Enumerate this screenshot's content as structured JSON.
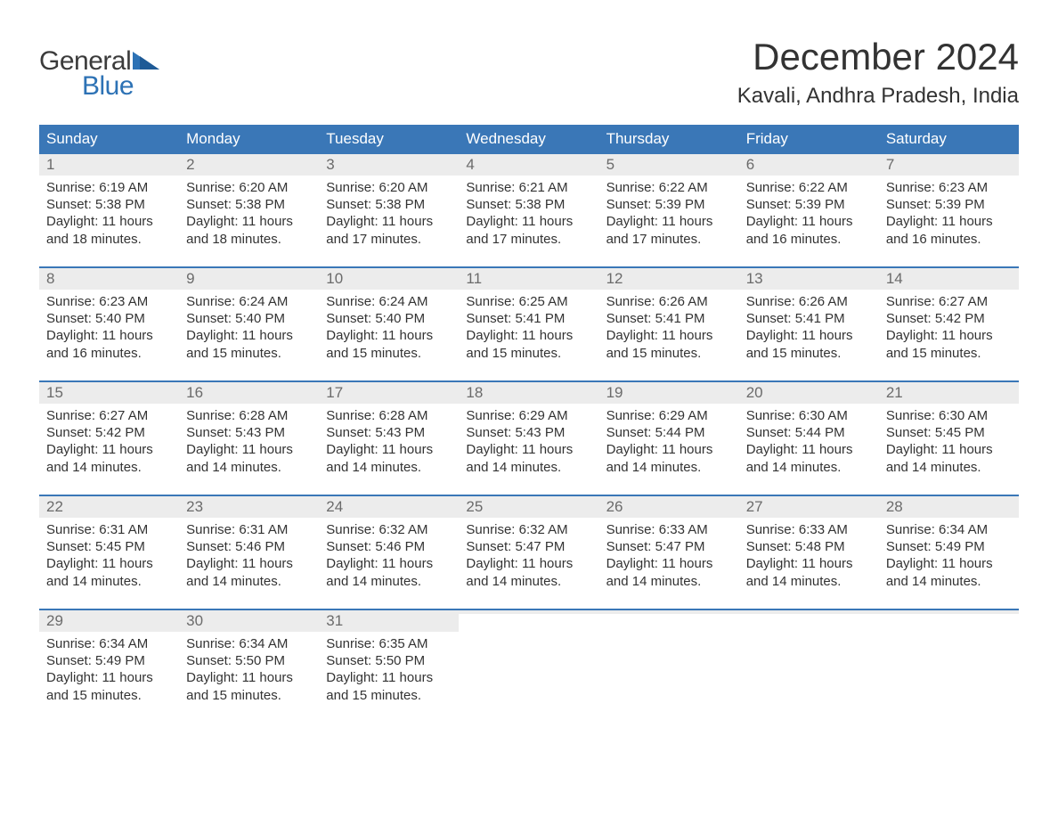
{
  "logo": {
    "word1": "General",
    "word2": "Blue",
    "brand_color": "#2d72b5",
    "text_color": "#3b3b3b"
  },
  "title": "December 2024",
  "subtitle": "Kavali, Andhra Pradesh, India",
  "colors": {
    "header_bg": "#3a77b7",
    "header_text": "#ffffff",
    "daynum_bg": "#ececec",
    "daynum_text": "#6b6b6b",
    "body_text": "#333333",
    "week_divider": "#3a77b7",
    "page_bg": "#ffffff"
  },
  "fontsizes": {
    "title": 42,
    "subtitle": 24,
    "header": 17,
    "daynum": 17,
    "body": 15
  },
  "weekdays": [
    "Sunday",
    "Monday",
    "Tuesday",
    "Wednesday",
    "Thursday",
    "Friday",
    "Saturday"
  ],
  "weeks": [
    [
      {
        "n": "1",
        "sunrise": "Sunrise: 6:19 AM",
        "sunset": "Sunset: 5:38 PM",
        "day1": "Daylight: 11 hours",
        "day2": "and 18 minutes."
      },
      {
        "n": "2",
        "sunrise": "Sunrise: 6:20 AM",
        "sunset": "Sunset: 5:38 PM",
        "day1": "Daylight: 11 hours",
        "day2": "and 18 minutes."
      },
      {
        "n": "3",
        "sunrise": "Sunrise: 6:20 AM",
        "sunset": "Sunset: 5:38 PM",
        "day1": "Daylight: 11 hours",
        "day2": "and 17 minutes."
      },
      {
        "n": "4",
        "sunrise": "Sunrise: 6:21 AM",
        "sunset": "Sunset: 5:38 PM",
        "day1": "Daylight: 11 hours",
        "day2": "and 17 minutes."
      },
      {
        "n": "5",
        "sunrise": "Sunrise: 6:22 AM",
        "sunset": "Sunset: 5:39 PM",
        "day1": "Daylight: 11 hours",
        "day2": "and 17 minutes."
      },
      {
        "n": "6",
        "sunrise": "Sunrise: 6:22 AM",
        "sunset": "Sunset: 5:39 PM",
        "day1": "Daylight: 11 hours",
        "day2": "and 16 minutes."
      },
      {
        "n": "7",
        "sunrise": "Sunrise: 6:23 AM",
        "sunset": "Sunset: 5:39 PM",
        "day1": "Daylight: 11 hours",
        "day2": "and 16 minutes."
      }
    ],
    [
      {
        "n": "8",
        "sunrise": "Sunrise: 6:23 AM",
        "sunset": "Sunset: 5:40 PM",
        "day1": "Daylight: 11 hours",
        "day2": "and 16 minutes."
      },
      {
        "n": "9",
        "sunrise": "Sunrise: 6:24 AM",
        "sunset": "Sunset: 5:40 PM",
        "day1": "Daylight: 11 hours",
        "day2": "and 15 minutes."
      },
      {
        "n": "10",
        "sunrise": "Sunrise: 6:24 AM",
        "sunset": "Sunset: 5:40 PM",
        "day1": "Daylight: 11 hours",
        "day2": "and 15 minutes."
      },
      {
        "n": "11",
        "sunrise": "Sunrise: 6:25 AM",
        "sunset": "Sunset: 5:41 PM",
        "day1": "Daylight: 11 hours",
        "day2": "and 15 minutes."
      },
      {
        "n": "12",
        "sunrise": "Sunrise: 6:26 AM",
        "sunset": "Sunset: 5:41 PM",
        "day1": "Daylight: 11 hours",
        "day2": "and 15 minutes."
      },
      {
        "n": "13",
        "sunrise": "Sunrise: 6:26 AM",
        "sunset": "Sunset: 5:41 PM",
        "day1": "Daylight: 11 hours",
        "day2": "and 15 minutes."
      },
      {
        "n": "14",
        "sunrise": "Sunrise: 6:27 AM",
        "sunset": "Sunset: 5:42 PM",
        "day1": "Daylight: 11 hours",
        "day2": "and 15 minutes."
      }
    ],
    [
      {
        "n": "15",
        "sunrise": "Sunrise: 6:27 AM",
        "sunset": "Sunset: 5:42 PM",
        "day1": "Daylight: 11 hours",
        "day2": "and 14 minutes."
      },
      {
        "n": "16",
        "sunrise": "Sunrise: 6:28 AM",
        "sunset": "Sunset: 5:43 PM",
        "day1": "Daylight: 11 hours",
        "day2": "and 14 minutes."
      },
      {
        "n": "17",
        "sunrise": "Sunrise: 6:28 AM",
        "sunset": "Sunset: 5:43 PM",
        "day1": "Daylight: 11 hours",
        "day2": "and 14 minutes."
      },
      {
        "n": "18",
        "sunrise": "Sunrise: 6:29 AM",
        "sunset": "Sunset: 5:43 PM",
        "day1": "Daylight: 11 hours",
        "day2": "and 14 minutes."
      },
      {
        "n": "19",
        "sunrise": "Sunrise: 6:29 AM",
        "sunset": "Sunset: 5:44 PM",
        "day1": "Daylight: 11 hours",
        "day2": "and 14 minutes."
      },
      {
        "n": "20",
        "sunrise": "Sunrise: 6:30 AM",
        "sunset": "Sunset: 5:44 PM",
        "day1": "Daylight: 11 hours",
        "day2": "and 14 minutes."
      },
      {
        "n": "21",
        "sunrise": "Sunrise: 6:30 AM",
        "sunset": "Sunset: 5:45 PM",
        "day1": "Daylight: 11 hours",
        "day2": "and 14 minutes."
      }
    ],
    [
      {
        "n": "22",
        "sunrise": "Sunrise: 6:31 AM",
        "sunset": "Sunset: 5:45 PM",
        "day1": "Daylight: 11 hours",
        "day2": "and 14 minutes."
      },
      {
        "n": "23",
        "sunrise": "Sunrise: 6:31 AM",
        "sunset": "Sunset: 5:46 PM",
        "day1": "Daylight: 11 hours",
        "day2": "and 14 minutes."
      },
      {
        "n": "24",
        "sunrise": "Sunrise: 6:32 AM",
        "sunset": "Sunset: 5:46 PM",
        "day1": "Daylight: 11 hours",
        "day2": "and 14 minutes."
      },
      {
        "n": "25",
        "sunrise": "Sunrise: 6:32 AM",
        "sunset": "Sunset: 5:47 PM",
        "day1": "Daylight: 11 hours",
        "day2": "and 14 minutes."
      },
      {
        "n": "26",
        "sunrise": "Sunrise: 6:33 AM",
        "sunset": "Sunset: 5:47 PM",
        "day1": "Daylight: 11 hours",
        "day2": "and 14 minutes."
      },
      {
        "n": "27",
        "sunrise": "Sunrise: 6:33 AM",
        "sunset": "Sunset: 5:48 PM",
        "day1": "Daylight: 11 hours",
        "day2": "and 14 minutes."
      },
      {
        "n": "28",
        "sunrise": "Sunrise: 6:34 AM",
        "sunset": "Sunset: 5:49 PM",
        "day1": "Daylight: 11 hours",
        "day2": "and 14 minutes."
      }
    ],
    [
      {
        "n": "29",
        "sunrise": "Sunrise: 6:34 AM",
        "sunset": "Sunset: 5:49 PM",
        "day1": "Daylight: 11 hours",
        "day2": "and 15 minutes."
      },
      {
        "n": "30",
        "sunrise": "Sunrise: 6:34 AM",
        "sunset": "Sunset: 5:50 PM",
        "day1": "Daylight: 11 hours",
        "day2": "and 15 minutes."
      },
      {
        "n": "31",
        "sunrise": "Sunrise: 6:35 AM",
        "sunset": "Sunset: 5:50 PM",
        "day1": "Daylight: 11 hours",
        "day2": "and 15 minutes."
      },
      {
        "empty": true
      },
      {
        "empty": true
      },
      {
        "empty": true
      },
      {
        "empty": true
      }
    ]
  ]
}
